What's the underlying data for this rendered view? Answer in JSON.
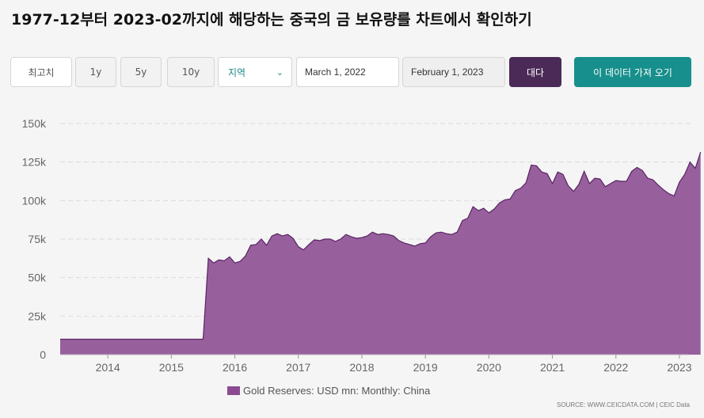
{
  "title": "1977-12부터 2023-02까지에 해당하는 중국의 금 보유량를 차트에서 확인하기",
  "controls": {
    "max_label": "최고치",
    "range_1y": "1y",
    "range_5y": "5y",
    "range_10y": "10y",
    "region_label": "지역",
    "date_from": "March 1, 2022",
    "date_to": "February 1, 2023",
    "apply_label": "대다",
    "export_label": "이 데이터 가져 오기"
  },
  "source": "SOURCE: WWW.CEICDATA.COM | CEIC Data",
  "colors": {
    "area": "#8b4a91",
    "line": "#5a2465",
    "accent": "#178f8c",
    "apply": "#4b2a57"
  },
  "chart_data": {
    "type": "area",
    "title": "",
    "series_name": "Gold Reserves: USD mn: Monthly: China",
    "x_start": 2013.25,
    "x_step_months": 1,
    "x_ticks": [
      2014,
      2015,
      2016,
      2017,
      2018,
      2019,
      2020,
      2021,
      2022,
      2023
    ],
    "y_ticks": [
      0,
      25000,
      50000,
      75000,
      100000,
      125000,
      150000
    ],
    "y_tick_labels": [
      "0",
      "25k",
      "50k",
      "75k",
      "100k",
      "125k",
      "150k"
    ],
    "ylim": [
      0,
      150000
    ],
    "xlim": [
      2013.25,
      2023.1
    ],
    "values": [
      10000,
      10000,
      10000,
      10000,
      10000,
      10000,
      10000,
      10000,
      10000,
      10000,
      10000,
      10000,
      10000,
      10000,
      10000,
      10000,
      10000,
      10000,
      10000,
      10000,
      10000,
      10000,
      10000,
      10000,
      10000,
      10000,
      10000,
      10000,
      62500,
      59500,
      61500,
      61000,
      63500,
      59500,
      60500,
      64000,
      71000,
      71500,
      75000,
      71000,
      77000,
      78500,
      77000,
      78000,
      75500,
      70000,
      68000,
      71500,
      74500,
      74000,
      75000,
      75000,
      73500,
      75000,
      78000,
      76500,
      75500,
      76000,
      77000,
      79500,
      78000,
      78500,
      78000,
      77000,
      74000,
      72500,
      71500,
      70500,
      72000,
      72500,
      76500,
      79000,
      79500,
      78500,
      78000,
      79500,
      87000,
      88500,
      96000,
      93500,
      95000,
      92000,
      94500,
      98500,
      100500,
      101000,
      106500,
      108000,
      111500,
      123000,
      122500,
      118500,
      117500,
      111000,
      118500,
      117000,
      109500,
      106000,
      110500,
      119000,
      111000,
      114500,
      114000,
      109000,
      111000,
      113000,
      112500,
      112500,
      119000,
      121500,
      119500,
      114500,
      113500,
      110000,
      107000,
      104500,
      103000,
      112000,
      117000,
      125000,
      121000,
      131500
    ]
  }
}
